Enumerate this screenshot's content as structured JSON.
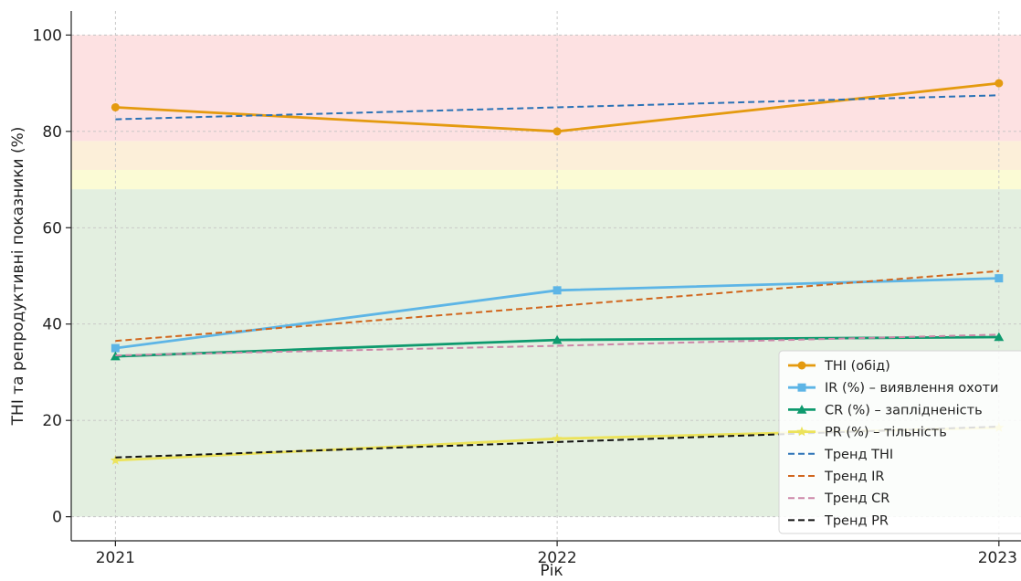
{
  "chart_data": {
    "type": "line",
    "xlabel": "Рік",
    "ylabel": "THI та репродуктивні показники (%)",
    "categories": [
      "2021",
      "2022",
      "2023"
    ],
    "x": [
      2021,
      2022,
      2023
    ],
    "xlim": [
      2020.9,
      2023.05
    ],
    "ylim": [
      -5,
      105
    ],
    "yticks": [
      0,
      20,
      40,
      60,
      80,
      100
    ],
    "grid": true,
    "legend_position": "lower-right",
    "bands": [
      {
        "from": 0,
        "to": 68,
        "color": "#e3efe0"
      },
      {
        "from": 68,
        "to": 72,
        "color": "#fbfbd5"
      },
      {
        "from": 72,
        "to": 78,
        "color": "#fcefd9"
      },
      {
        "from": 78,
        "to": 100,
        "color": "#fde1e2"
      }
    ],
    "series": [
      {
        "name": "THI (обід)",
        "values": [
          85,
          80,
          90
        ],
        "color": "#e49a0f",
        "style": "solid",
        "marker": "circle"
      },
      {
        "name": "IR (%) – виявлення охоти",
        "values": [
          35,
          47,
          49.5
        ],
        "color": "#5db5e6",
        "style": "solid",
        "marker": "square"
      },
      {
        "name": "CR (%) – заплідненість",
        "values": [
          33.3,
          36.7,
          37.3
        ],
        "color": "#0e9a6e",
        "style": "solid",
        "marker": "triangle"
      },
      {
        "name": "PR (%) – тільність",
        "values": [
          11.7,
          16.2,
          18.5
        ],
        "color": "#ece35a",
        "style": "solid",
        "marker": "star"
      },
      {
        "name": "Тренд THI",
        "values": [
          82.5,
          85,
          87.5
        ],
        "color": "#2a72b6",
        "style": "dashed",
        "marker": "none"
      },
      {
        "name": "Тренд IR",
        "values": [
          36.5,
          43.75,
          51
        ],
        "color": "#d1661e",
        "style": "dashed",
        "marker": "none"
      },
      {
        "name": "Тренд CR",
        "values": [
          33.5,
          35.5,
          37.8
        ],
        "color": "#cc86a8",
        "style": "dashed",
        "marker": "none"
      },
      {
        "name": "Тренд PR",
        "values": [
          12.3,
          15.5,
          18.7
        ],
        "color": "#111111",
        "style": "dashed",
        "marker": "none"
      }
    ]
  }
}
